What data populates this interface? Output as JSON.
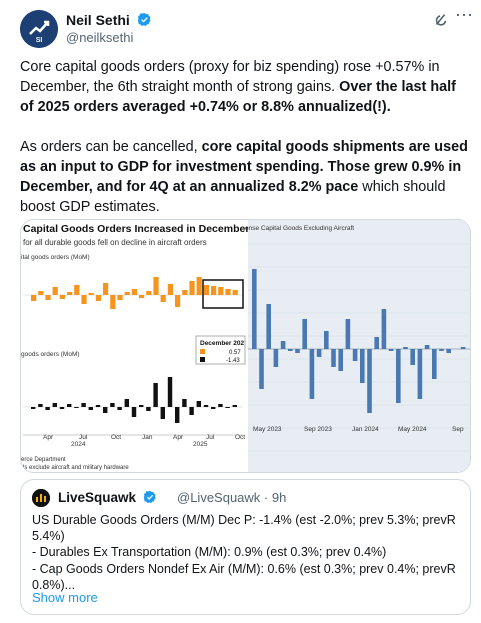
{
  "tweet": {
    "author_name": "Neil Sethi",
    "author_handle": "@neilksethi",
    "paragraph1_a": "Core capital goods orders (proxy for biz spending) rose +0.57% in December, the 6th straight month of strong gains. ",
    "paragraph1_b": "Over the last half of 2025 orders averaged +0.74% or 8.8% annualized(!).",
    "paragraph2_a": "As orders can be cancelled, ",
    "paragraph2_b": "core capital goods shipments are used as an input to GDP for investment spending. Those grew 0.9% in December, and for 4Q at an annualized 8.2% pace",
    "paragraph2_c": " which should boost GDP estimates."
  },
  "left_chart": {
    "title": "Capital Goods Orders Increased in December",
    "subtitle": "for all durable goods fell on decline in aircraft orders",
    "panel1_label": "ital goods orders (MoM)",
    "panel2_label": "goods orders (MoM)",
    "legend_title": "December 202",
    "legend_v1": "0.57",
    "legend_v2": "-1.43",
    "x_ticks": [
      "Apr",
      "Jul",
      "Oct",
      "Jan",
      "Apr",
      "Jul",
      "Oct"
    ],
    "year1": "2024",
    "year2": "2025",
    "source1": "erce Department",
    "source2": "ds exclude aircraft and military hardware",
    "colors": {
      "orange": "#f7941d",
      "black": "#111111"
    }
  },
  "right_chart": {
    "title": "ense Capital Goods Excluding Aircraft",
    "x_ticks": [
      "May 2023",
      "Sep 2023",
      "Jan 2024",
      "May 2024",
      "Sep"
    ],
    "bar_color": "#4a78b0",
    "background": "#e7edf3"
  },
  "quote": {
    "name": "LiveSquawk",
    "handle_time": "@LiveSquawk · 9h",
    "lines": [
      "US Durable Goods Orders (M/M) Dec P: -1.4% (est -2.0%; prev 5.3%; prevR",
      "5.4%)",
      "- Durables Ex Transportation (M/M): 0.9% (est 0.3%; prev 0.4%)",
      "- Cap Goods Orders Nondef Ex Air (M/M): 0.6% (est 0.3%; prev 0.4%; prevR",
      "0.8%)..."
    ],
    "show_more": "Show more"
  }
}
